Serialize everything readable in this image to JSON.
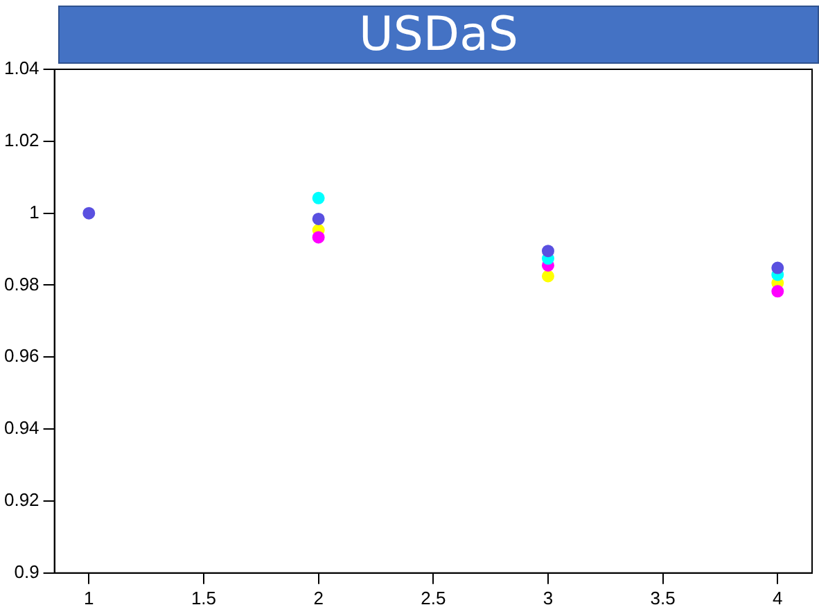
{
  "chart_data": {
    "type": "scatter",
    "title": "USDaS",
    "xlim": [
      0.85,
      4.15
    ],
    "xticks": [
      1,
      1.5,
      2,
      2.5,
      3,
      3.5,
      4
    ],
    "ylim": [
      0.9,
      1.04
    ],
    "yticks": [
      0.9,
      0.92,
      0.94,
      0.96,
      0.98,
      1,
      1.02,
      1.04
    ],
    "x": [
      1,
      2,
      3,
      4
    ],
    "series": [
      {
        "color": "#5a50e0",
        "values": [
          1.0,
          0.9984,
          0.9895,
          0.9848
        ]
      },
      {
        "color": "#00ffff",
        "values": [
          null,
          1.0042,
          0.9874,
          0.9829
        ]
      },
      {
        "color": "#ff00ff",
        "values": [
          null,
          0.9933,
          0.9855,
          0.9783
        ]
      },
      {
        "color": "#ffff00",
        "values": [
          null,
          0.9953,
          0.9825,
          0.9806
        ]
      }
    ],
    "marker": "circle",
    "grid": false,
    "legend": false
  }
}
